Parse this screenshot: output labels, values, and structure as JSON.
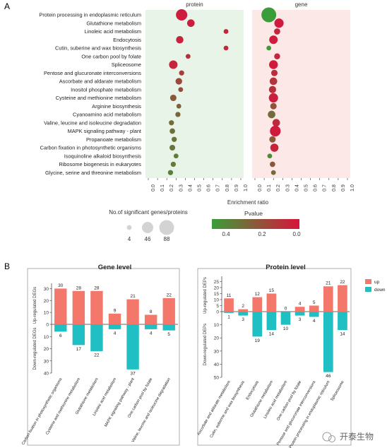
{
  "panel_labels": {
    "a": "A",
    "b": "B"
  },
  "watermark": "开泰生物",
  "chart_data": [
    {
      "type": "scatter",
      "panels": [
        "protein",
        "gene"
      ],
      "xlabel": "Enrichment ratio",
      "xlim": [
        0,
        1.0
      ],
      "x_ticks": [
        "0.0",
        "0.1",
        "0.2",
        "0.3",
        "0.4",
        "0.5",
        "0.6",
        "0.7",
        "0.8",
        "0.9",
        "1.0"
      ],
      "categories": [
        "Protein processing in endoplasmic reticulum",
        "Glutathione metabolism",
        "Linoleic acid metabolism",
        "Endocytosis",
        "Cutin, suberine and wax biosynthesis",
        "One carbon pool by folate",
        "Spliceosome",
        "Pentose and glucuronate interconversions",
        "Ascorbate and aldarate metabolism",
        "Inositol phosphate metabolism",
        "Cysteine and methionine metabolism",
        "Arginine biosynthesis",
        "Cyanoamino acid metabolism",
        "Valine, leucine and isoleucine degradation",
        "MAPK signaling pathway - plant",
        "Propanoate metabolism",
        "Carbon fixation in photosynthetic organisms",
        "Isoquinoline alkaloid biosynthesis",
        "Ribosome biogenesis in eukaryotes",
        "Glycine, serine and threonine metabolism"
      ],
      "protein": [
        {
          "x": 0.36,
          "size": 46,
          "p": 0.02
        },
        {
          "x": 0.46,
          "size": 16,
          "p": 0.03
        },
        {
          "x": 0.84,
          "size": 4,
          "p": 0.05
        },
        {
          "x": 0.34,
          "size": 15,
          "p": 0.04
        },
        {
          "x": 0.84,
          "size": 4,
          "p": 0.06
        },
        {
          "x": 0.43,
          "size": 4,
          "p": 0.08
        },
        {
          "x": 0.27,
          "size": 22,
          "p": 0.05
        },
        {
          "x": 0.36,
          "size": 5,
          "p": 0.12
        },
        {
          "x": 0.33,
          "size": 11,
          "p": 0.15
        },
        {
          "x": 0.35,
          "size": 4,
          "p": 0.16
        },
        {
          "x": 0.27,
          "size": 10,
          "p": 0.2
        },
        {
          "x": 0.33,
          "size": 4,
          "p": 0.22
        },
        {
          "x": 0.32,
          "size": 5,
          "p": 0.24
        },
        {
          "x": 0.25,
          "size": 5,
          "p": 0.26
        },
        {
          "x": 0.26,
          "size": 6,
          "p": 0.27
        },
        {
          "x": 0.28,
          "size": 5,
          "p": 0.28
        },
        {
          "x": 0.26,
          "size": 7,
          "p": 0.28
        },
        {
          "x": 0.3,
          "size": 4,
          "p": 0.3
        },
        {
          "x": 0.27,
          "size": 5,
          "p": 0.3
        },
        {
          "x": 0.24,
          "size": 5,
          "p": 0.31
        }
      ],
      "gene": [
        {
          "x": 0.15,
          "size": 88,
          "p": 0.4
        },
        {
          "x": 0.26,
          "size": 28,
          "p": 0.02
        },
        {
          "x": 0.24,
          "size": 9,
          "p": 0.05
        },
        {
          "x": 0.2,
          "size": 22,
          "p": 0.02
        },
        {
          "x": 0.15,
          "size": 4,
          "p": 0.4
        },
        {
          "x": 0.24,
          "size": 8,
          "p": 0.06
        },
        {
          "x": 0.2,
          "size": 24,
          "p": 0.02
        },
        {
          "x": 0.21,
          "size": 10,
          "p": 0.08
        },
        {
          "x": 0.2,
          "size": 16,
          "p": 0.1
        },
        {
          "x": 0.19,
          "size": 14,
          "p": 0.08
        },
        {
          "x": 0.2,
          "size": 28,
          "p": 0.03
        },
        {
          "x": 0.2,
          "size": 10,
          "p": 0.18
        },
        {
          "x": 0.18,
          "size": 16,
          "p": 0.25
        },
        {
          "x": 0.23,
          "size": 16,
          "p": 0.06
        },
        {
          "x": 0.22,
          "size": 40,
          "p": 0.02
        },
        {
          "x": 0.19,
          "size": 10,
          "p": 0.2
        },
        {
          "x": 0.21,
          "size": 20,
          "p": 0.04
        },
        {
          "x": 0.16,
          "size": 4,
          "p": 0.35
        },
        {
          "x": 0.19,
          "size": 6,
          "p": 0.2
        },
        {
          "x": 0.2,
          "size": 4,
          "p": 0.25
        }
      ],
      "size_legend": {
        "title": "No.of significant genes/proteins",
        "values": [
          4,
          46,
          88
        ]
      },
      "color_legend": {
        "title": "Pvalue",
        "ticks": [
          "0.4",
          "0.2",
          "0.0"
        ],
        "colors": [
          "#3a9d3a",
          "#d7143c"
        ]
      }
    },
    {
      "type": "bar",
      "title": "Gene level",
      "ylabel_up": "Up-regulated DEGs",
      "ylabel_down": "Down-regulated DEGs",
      "y_ticks_up": [
        "30",
        "20",
        "10",
        "0"
      ],
      "y_ticks_down": [
        "10",
        "20",
        "30",
        "40"
      ],
      "ylim_up": [
        0,
        32
      ],
      "ylim_down": [
        0,
        40
      ],
      "categories": [
        "Carbon fixation in photosynthetic organisms",
        "Cysteine and methionine metabolism",
        "Glutathione metabolism",
        "Linoleic acid metabolism",
        "MAPK signaling pathway - plant",
        "One carbon pool by folate",
        "Valine, leucine and isoleucine degradation"
      ],
      "up": [
        30,
        28,
        28,
        9,
        21,
        8,
        22
      ],
      "down": [
        6,
        17,
        22,
        4,
        37,
        4,
        5
      ]
    },
    {
      "type": "bar",
      "title": "Protein level",
      "ylabel_up": "Up-regulated DEPs",
      "ylabel_down": "Down-regulated DEPs",
      "y_ticks_up": [
        "25",
        "20",
        "15",
        "10",
        "5",
        "0"
      ],
      "y_ticks_down": [
        "10",
        "20",
        "30",
        "40",
        "50"
      ],
      "ylim_up": [
        0,
        27
      ],
      "ylim_down": [
        0,
        50
      ],
      "categories": [
        "Ascorbate and aldarate metabolism",
        "Cutin, suberine and wax biosynthesis",
        "Endocytosis",
        "Glutathione metabolism",
        "Linoleic acid metabolism",
        "One carbon pool by folate",
        "Pentose and glucuronate interconversions",
        "Protein processing in endoplasmic reticulum",
        "Spliceosome"
      ],
      "up": [
        11,
        2,
        12,
        15,
        0,
        4,
        5,
        21,
        22
      ],
      "down": [
        1,
        3,
        19,
        14,
        10,
        3,
        4,
        46,
        14
      ],
      "legend": [
        "up",
        "down"
      ]
    }
  ],
  "colors": {
    "up": "#f4776b",
    "down": "#1fbfc4",
    "protein_bg": "#e9f4e8",
    "gene_bg": "#fde8e8"
  }
}
